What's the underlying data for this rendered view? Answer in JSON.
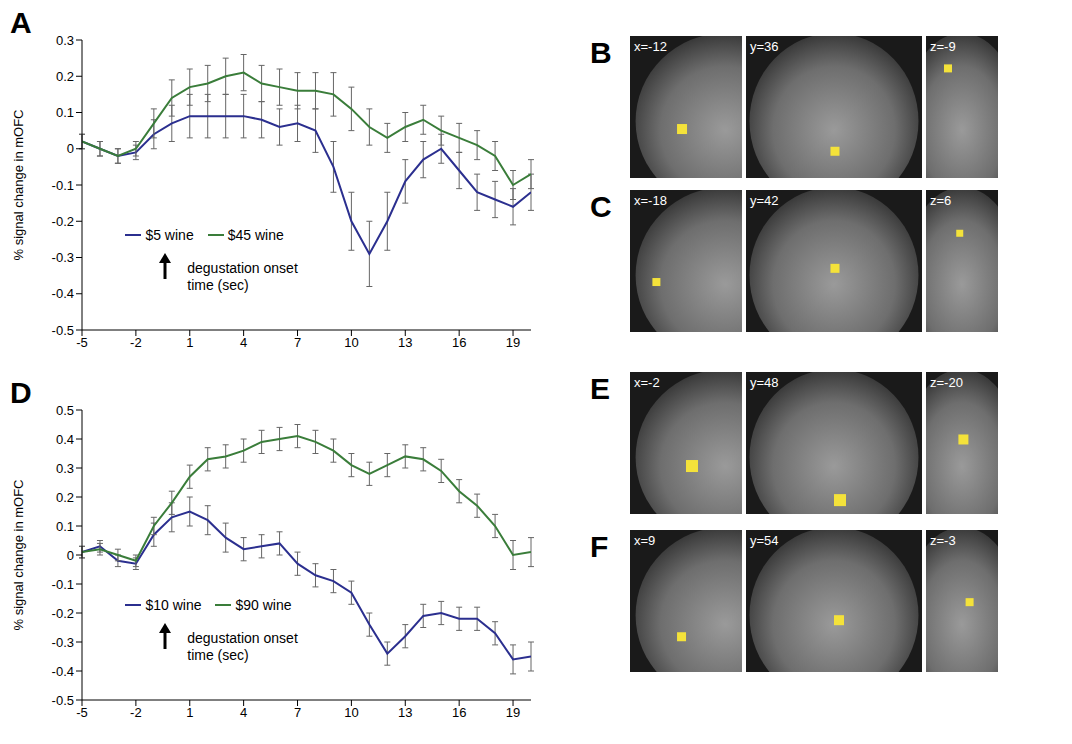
{
  "chart_data": [
    {
      "type": "line",
      "panel": "A",
      "y_label": "% signal change in mOFC",
      "annotations": [
        "degustation onset",
        "time (sec)"
      ],
      "legend": "lower left",
      "xlim": [
        -5,
        20
      ],
      "xticks": [
        -5,
        -2,
        1,
        4,
        7,
        10,
        13,
        16,
        19
      ],
      "ylim": [
        -0.5,
        0.3
      ],
      "yticks": [
        -0.5,
        -0.4,
        -0.3,
        -0.2,
        -0.1,
        0,
        0.1,
        0.2,
        0.3
      ],
      "x": [
        -5,
        -4,
        -3,
        -2,
        -1,
        0,
        1,
        2,
        3,
        4,
        5,
        6,
        7,
        8,
        9,
        10,
        11,
        12,
        13,
        14,
        15,
        16,
        17,
        18,
        19,
        20
      ],
      "series": [
        {
          "name": "$5 wine",
          "color": "#2b2f8f",
          "values": [
            0.02,
            0,
            -0.02,
            -0.01,
            0.04,
            0.07,
            0.09,
            0.09,
            0.09,
            0.09,
            0.08,
            0.06,
            0.07,
            0.05,
            -0.05,
            -0.2,
            -0.29,
            -0.2,
            -0.09,
            -0.03,
            0,
            -0.06,
            -0.12,
            -0.14,
            -0.16,
            -0.12
          ],
          "errors": [
            0.02,
            0.02,
            0.02,
            0.02,
            0.04,
            0.05,
            0.06,
            0.06,
            0.06,
            0.06,
            0.05,
            0.05,
            0.05,
            0.06,
            0.07,
            0.08,
            0.09,
            0.08,
            0.06,
            0.05,
            0.04,
            0.05,
            0.05,
            0.05,
            0.05,
            0.05
          ]
        },
        {
          "name": "$45 wine",
          "color": "#3a7d3a",
          "values": [
            0.02,
            0,
            -0.02,
            0,
            0.07,
            0.14,
            0.17,
            0.18,
            0.2,
            0.21,
            0.18,
            0.17,
            0.16,
            0.16,
            0.15,
            0.11,
            0.06,
            0.03,
            0.06,
            0.08,
            0.05,
            0.03,
            0.01,
            -0.02,
            -0.1,
            -0.07
          ],
          "errors": [
            0.02,
            0.02,
            0.02,
            0.02,
            0.04,
            0.05,
            0.05,
            0.05,
            0.05,
            0.05,
            0.05,
            0.05,
            0.05,
            0.05,
            0.06,
            0.06,
            0.05,
            0.04,
            0.04,
            0.04,
            0.04,
            0.04,
            0.04,
            0.04,
            0.04,
            0.04
          ]
        }
      ]
    },
    {
      "type": "line",
      "panel": "D",
      "y_label": "% signal change in mOFC",
      "annotations": [
        "degustation onset",
        "time (sec)"
      ],
      "legend": "lower left",
      "xlim": [
        -5,
        20
      ],
      "xticks": [
        -5,
        -2,
        1,
        4,
        7,
        10,
        13,
        16,
        19
      ],
      "ylim": [
        -0.5,
        0.5
      ],
      "yticks": [
        -0.5,
        -0.4,
        -0.3,
        -0.2,
        -0.1,
        0,
        0.1,
        0.2,
        0.3,
        0.4,
        0.5
      ],
      "x": [
        -5,
        -4,
        -3,
        -2,
        -1,
        0,
        1,
        2,
        3,
        4,
        5,
        6,
        7,
        8,
        9,
        10,
        11,
        12,
        13,
        14,
        15,
        16,
        17,
        18,
        19,
        20
      ],
      "series": [
        {
          "name": "$10 wine",
          "color": "#2b2f8f",
          "values": [
            0.01,
            0.03,
            -0.02,
            -0.03,
            0.07,
            0.13,
            0.15,
            0.12,
            0.06,
            0.02,
            0.03,
            0.04,
            -0.03,
            -0.07,
            -0.09,
            -0.13,
            -0.24,
            -0.34,
            -0.28,
            -0.21,
            -0.2,
            -0.22,
            -0.22,
            -0.27,
            -0.36,
            -0.35
          ],
          "errors": [
            0.02,
            0.02,
            0.02,
            0.02,
            0.04,
            0.05,
            0.05,
            0.05,
            0.05,
            0.04,
            0.04,
            0.04,
            0.04,
            0.04,
            0.04,
            0.04,
            0.04,
            0.04,
            0.04,
            0.04,
            0.04,
            0.04,
            0.04,
            0.04,
            0.05,
            0.05
          ]
        },
        {
          "name": "$90 wine",
          "color": "#3a7d3a",
          "values": [
            0.01,
            0.02,
            0,
            -0.02,
            0.1,
            0.18,
            0.27,
            0.33,
            0.34,
            0.36,
            0.39,
            0.4,
            0.41,
            0.39,
            0.36,
            0.31,
            0.28,
            0.31,
            0.34,
            0.33,
            0.29,
            0.22,
            0.17,
            0.1,
            0,
            0.01
          ],
          "errors": [
            0.02,
            0.02,
            0.02,
            0.02,
            0.03,
            0.04,
            0.04,
            0.04,
            0.04,
            0.04,
            0.04,
            0.04,
            0.04,
            0.04,
            0.04,
            0.04,
            0.04,
            0.04,
            0.04,
            0.04,
            0.04,
            0.04,
            0.04,
            0.04,
            0.05,
            0.05
          ]
        }
      ]
    }
  ],
  "image_panels": [
    {
      "panel": "B",
      "labels": [
        "x=-12",
        "y=36",
        "z=-9"
      ]
    },
    {
      "panel": "C",
      "labels": [
        "x=-18",
        "y=42",
        "z=6"
      ]
    },
    {
      "panel": "E",
      "labels": [
        "x=-2",
        "y=48",
        "z=-20"
      ]
    },
    {
      "panel": "F",
      "labels": [
        "x=9",
        "y=54",
        "z=-3"
      ]
    }
  ]
}
